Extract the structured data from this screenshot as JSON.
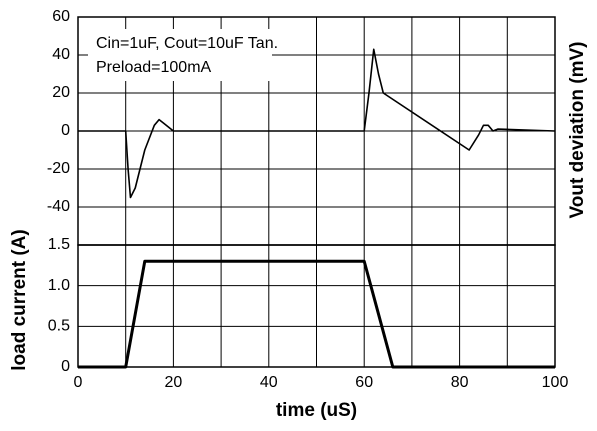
{
  "chart_data": [
    {
      "type": "line",
      "ylabel": "Vout deviation (mV)",
      "annotations": [
        "Cin=1uF, Cout=10uF Tan.",
        "Preload=100mA"
      ],
      "xlim": [
        0,
        100
      ],
      "ylim": [
        -60,
        60
      ],
      "yticks": [
        -40,
        -20,
        0,
        20,
        40,
        60
      ],
      "grid": true,
      "x": [
        0,
        10,
        10.5,
        11,
        12,
        14,
        16,
        17,
        18,
        20,
        60,
        61,
        62,
        63,
        64,
        82,
        84,
        85,
        86,
        87,
        88,
        100
      ],
      "series": [
        {
          "name": "Vout deviation",
          "color": "#000000",
          "values": [
            0,
            0,
            -20,
            -35,
            -30,
            -10,
            3,
            6,
            4,
            0,
            0,
            20,
            43,
            30,
            20,
            -10,
            -2,
            3,
            3,
            0,
            1,
            0
          ]
        }
      ]
    },
    {
      "type": "line",
      "xlabel": "time (uS)",
      "ylabel": "load current (A)",
      "xlim": [
        0,
        100
      ],
      "xticks": [
        0,
        20,
        40,
        60,
        80,
        100
      ],
      "ylim": [
        0,
        1.5
      ],
      "yticks": [
        0,
        0.5,
        {
          "value": 1,
          "label": "1.0"
        },
        1.5
      ],
      "grid": true,
      "x": [
        0,
        10,
        14,
        60,
        66,
        100
      ],
      "series": [
        {
          "name": "load current",
          "color": "#000000",
          "values": [
            0,
            0,
            1.3,
            1.3,
            0,
            0
          ]
        }
      ]
    }
  ]
}
